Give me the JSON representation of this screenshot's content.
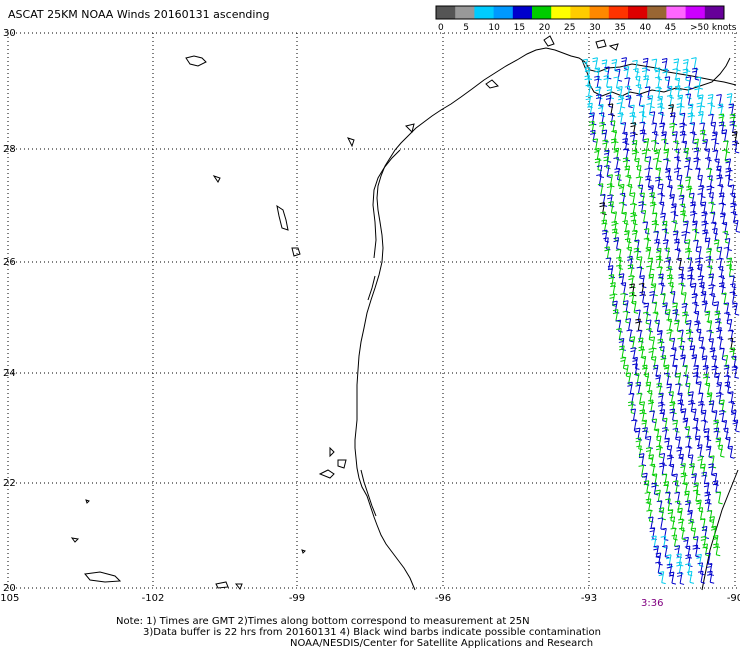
{
  "title": "ASCAT 25KM NOAA Winds 20160131 ascending",
  "legend": {
    "colors": [
      "#555555",
      "#999999",
      "#00ccff",
      "#0099ff",
      "#0000cc",
      "#00cc00",
      "#ffff00",
      "#ffcc00",
      "#ff8800",
      "#ff3300",
      "#dd0000",
      "#996633",
      "#ff66ff",
      "#cc00ff",
      "#660099"
    ],
    "labels": [
      "0",
      "5",
      "10",
      "15",
      "20",
      "25",
      "30",
      "35",
      "40",
      "45",
      ">50 knots"
    ]
  },
  "axes": {
    "longitude_ticks": [
      "-105",
      "-102",
      "-99",
      "-96",
      "-93",
      "-90"
    ],
    "latitude_ticks": [
      "30",
      "28",
      "26",
      "24",
      "22",
      "20"
    ]
  },
  "swath_time": "3:36",
  "notes": {
    "line1": "Note: 1) Times are GMT 2)Times along bottom correspond to measurement at 25N",
    "line2": "3)Data buffer is 22 hrs from 20160131 4) Black wind barbs indicate possible contamination",
    "line3": "NOAA/NESDIS/Center for Satellite Applications and Research"
  },
  "map": {
    "coastline_color": "#000000",
    "grid": "dotted",
    "barb_colors": {
      "cyan": "#00ccee",
      "blue": "#0000cc",
      "green": "#00cc00",
      "black": "#000000"
    }
  }
}
